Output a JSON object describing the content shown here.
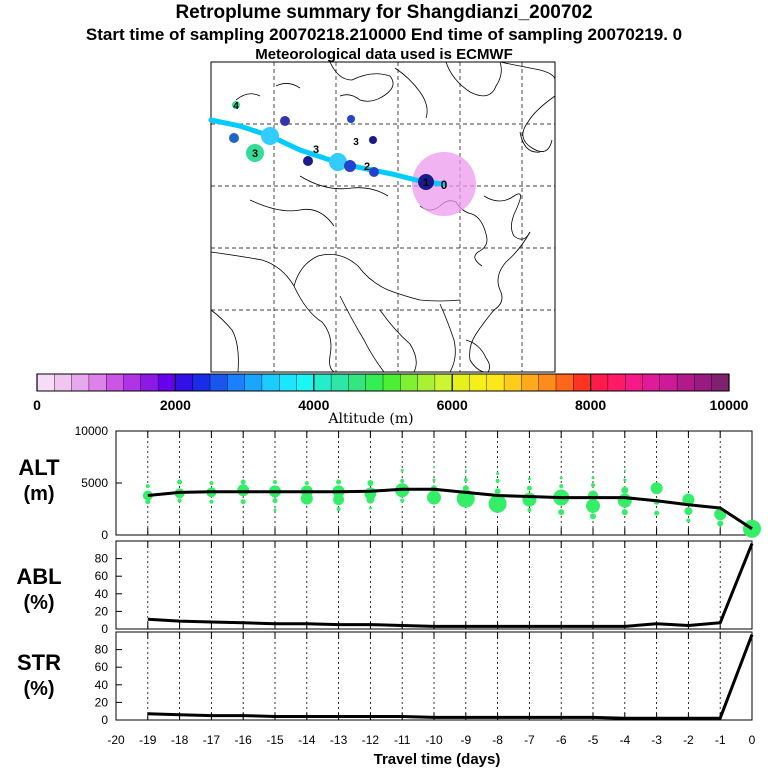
{
  "header": {
    "title": "Retroplume summary for Shangdianzi_200702",
    "subtitle": "Start time of sampling 20070218.210000     End time of sampling 20070219.     0",
    "met_line": "Meteorological data used is ECMWF"
  },
  "map": {
    "region": "Eastern Asia",
    "receptor_label": "0",
    "track_color": "#00ccff",
    "receptor_color": "#ee99ee",
    "clusters": [
      {
        "label": "4",
        "color": "#33dd99"
      },
      {
        "label": "4",
        "color": "#3333aa"
      },
      {
        "label": "3",
        "color": "#33dd99"
      },
      {
        "label": "3",
        "color": "#1f66cc"
      },
      {
        "label": "3",
        "color": "#1a1a8c"
      },
      {
        "label": "2",
        "color": "#2244cc"
      },
      {
        "label": "2",
        "color": "#1a1a8c"
      },
      {
        "label": "1",
        "color": "#1a1a8c"
      }
    ]
  },
  "colorbar": {
    "min": 0,
    "max": 10000,
    "ticks": [
      "0",
      "2000",
      "4000",
      "6000",
      "8000",
      "10000"
    ],
    "label": "Altitude (m)",
    "colors": [
      "#f7dcf7",
      "#f0c6f0",
      "#e8a8ee",
      "#dc82ea",
      "#cc55e6",
      "#b133e6",
      "#8c1ae6",
      "#6600ee",
      "#3311e6",
      "#1a2de6",
      "#1a55f0",
      "#1a80ff",
      "#1aa6ff",
      "#1accff",
      "#1ae6ff",
      "#1af5f5",
      "#22eecc",
      "#2ee6a6",
      "#33e680",
      "#33ee55",
      "#4cf033",
      "#80f033",
      "#aaf033",
      "#ccf533",
      "#e6f01a",
      "#f5f01a",
      "#ffe61a",
      "#ffcc1a",
      "#ffaa1a",
      "#ff8c1a",
      "#ff661a",
      "#ff3322",
      "#ff1a4c",
      "#ff1a66",
      "#f51a88",
      "#e01a99",
      "#cc1a99",
      "#b21a8c",
      "#991a80",
      "#802070"
    ]
  },
  "chart_data": [
    {
      "type": "line",
      "panel": "ALT",
      "title": "ALT",
      "ylabel": "ALT (m)",
      "ylabel_top": "ALT",
      "ylabel_bottom": "(m)",
      "xlabel": "Travel time (days)",
      "ylim": [
        0,
        10000
      ],
      "yticks": [
        0,
        5000,
        10000
      ],
      "x": [
        -19,
        -18,
        -17,
        -16,
        -15,
        -14,
        -13,
        -12,
        -11,
        -10,
        -9,
        -8,
        -7,
        -6,
        -5,
        -4,
        -3,
        -2,
        -1,
        0
      ],
      "values": [
        3800,
        4100,
        4150,
        4150,
        4150,
        4150,
        4150,
        4200,
        4400,
        4400,
        4100,
        3800,
        3700,
        3600,
        3600,
        3600,
        3300,
        2900,
        2600,
        600
      ],
      "cluster_points": {
        "color": "#33ee66",
        "points": [
          {
            "x": -19,
            "y": 3800,
            "s": 5
          },
          {
            "x": -19,
            "y": 4700,
            "s": 2
          },
          {
            "x": -19,
            "y": 3200,
            "s": 2.5
          },
          {
            "x": -18,
            "y": 4000,
            "s": 5
          },
          {
            "x": -18,
            "y": 5100,
            "s": 2.5
          },
          {
            "x": -18,
            "y": 3300,
            "s": 2
          },
          {
            "x": -17,
            "y": 4100,
            "s": 5
          },
          {
            "x": -17,
            "y": 5000,
            "s": 2
          },
          {
            "x": -17,
            "y": 3200,
            "s": 2
          },
          {
            "x": -16,
            "y": 4300,
            "s": 6
          },
          {
            "x": -16,
            "y": 5100,
            "s": 2.5
          },
          {
            "x": -16,
            "y": 3200,
            "s": 2.5
          },
          {
            "x": -15,
            "y": 4200,
            "s": 6
          },
          {
            "x": -15,
            "y": 5100,
            "s": 2
          },
          {
            "x": -15,
            "y": 3300,
            "s": 2.5
          },
          {
            "x": -15,
            "y": 2400,
            "s": 1.5
          },
          {
            "x": -14,
            "y": 4200,
            "s": 6
          },
          {
            "x": -14,
            "y": 3500,
            "s": 6
          },
          {
            "x": -14,
            "y": 5000,
            "s": 2
          },
          {
            "x": -13,
            "y": 4200,
            "s": 6
          },
          {
            "x": -13,
            "y": 3400,
            "s": 5.5
          },
          {
            "x": -13,
            "y": 5100,
            "s": 2.5
          },
          {
            "x": -13,
            "y": 2500,
            "s": 2
          },
          {
            "x": -12,
            "y": 4000,
            "s": 6
          },
          {
            "x": -12,
            "y": 3400,
            "s": 4
          },
          {
            "x": -12,
            "y": 5000,
            "s": 3
          },
          {
            "x": -12,
            "y": 2600,
            "s": 1.5
          },
          {
            "x": -11,
            "y": 4300,
            "s": 7
          },
          {
            "x": -11,
            "y": 5200,
            "s": 2
          },
          {
            "x": -11,
            "y": 6200,
            "s": 1.5
          },
          {
            "x": -11,
            "y": 3300,
            "s": 2
          },
          {
            "x": -10,
            "y": 3600,
            "s": 7
          },
          {
            "x": -10,
            "y": 4500,
            "s": 3
          },
          {
            "x": -10,
            "y": 5300,
            "s": 1.5
          },
          {
            "x": -10,
            "y": 6500,
            "s": 1
          },
          {
            "x": -9,
            "y": 3500,
            "s": 9
          },
          {
            "x": -9,
            "y": 4500,
            "s": 3
          },
          {
            "x": -9,
            "y": 5300,
            "s": 2
          },
          {
            "x": -9,
            "y": 6200,
            "s": 1
          },
          {
            "x": -8,
            "y": 3000,
            "s": 9
          },
          {
            "x": -8,
            "y": 4200,
            "s": 3
          },
          {
            "x": -8,
            "y": 5200,
            "s": 2
          },
          {
            "x": -8,
            "y": 5900,
            "s": 1.5
          },
          {
            "x": -7,
            "y": 3400,
            "s": 7
          },
          {
            "x": -7,
            "y": 4500,
            "s": 2.5
          },
          {
            "x": -7,
            "y": 5400,
            "s": 1.5
          },
          {
            "x": -7,
            "y": 2400,
            "s": 2
          },
          {
            "x": -6,
            "y": 3600,
            "s": 8
          },
          {
            "x": -6,
            "y": 2200,
            "s": 3
          },
          {
            "x": -6,
            "y": 4700,
            "s": 2
          },
          {
            "x": -6,
            "y": 5500,
            "s": 1.5
          },
          {
            "x": -5,
            "y": 2800,
            "s": 7
          },
          {
            "x": -5,
            "y": 3800,
            "s": 5
          },
          {
            "x": -5,
            "y": 1800,
            "s": 3
          },
          {
            "x": -5,
            "y": 4800,
            "s": 2
          },
          {
            "x": -5,
            "y": 5500,
            "s": 1.5
          },
          {
            "x": -4,
            "y": 3300,
            "s": 7
          },
          {
            "x": -4,
            "y": 4300,
            "s": 3.5
          },
          {
            "x": -4,
            "y": 2200,
            "s": 3
          },
          {
            "x": -4,
            "y": 5300,
            "s": 1.5
          },
          {
            "x": -4,
            "y": 6200,
            "s": 1
          },
          {
            "x": -3,
            "y": 4500,
            "s": 6
          },
          {
            "x": -3,
            "y": 3200,
            "s": 3
          },
          {
            "x": -3,
            "y": 2100,
            "s": 2.5
          },
          {
            "x": -2,
            "y": 3400,
            "s": 6
          },
          {
            "x": -2,
            "y": 2300,
            "s": 4
          },
          {
            "x": -2,
            "y": 1400,
            "s": 2
          },
          {
            "x": -1,
            "y": 2000,
            "s": 6
          },
          {
            "x": -1,
            "y": 1100,
            "s": 3
          },
          {
            "x": 0,
            "y": 600,
            "s": 9
          }
        ]
      }
    },
    {
      "type": "line",
      "panel": "ABL",
      "title": "ABL",
      "ylabel": "ABL (%)",
      "ylabel_top": "ABL",
      "ylabel_bottom": "(%)",
      "ylim": [
        0,
        100
      ],
      "yticks": [
        0,
        20,
        40,
        60,
        80
      ],
      "x": [
        -19,
        -18,
        -17,
        -16,
        -15,
        -14,
        -13,
        -12,
        -11,
        -10,
        -9,
        -8,
        -7,
        -6,
        -5,
        -4,
        -3,
        -2,
        -1,
        0
      ],
      "values": [
        11,
        9,
        8,
        7,
        6,
        6,
        5,
        5,
        4,
        3,
        3,
        3,
        3,
        3,
        3,
        3,
        6,
        4,
        7,
        97
      ]
    },
    {
      "type": "line",
      "panel": "STR",
      "title": "STR",
      "ylabel": "STR (%)",
      "ylabel_top": "STR",
      "ylabel_bottom": "(%)",
      "xlabel": "Travel time (days)",
      "ylim": [
        0,
        100
      ],
      "yticks": [
        0,
        20,
        40,
        60,
        80
      ],
      "xticks": [
        -20,
        -19,
        -18,
        -17,
        -16,
        -15,
        -14,
        -13,
        -12,
        -11,
        -10,
        -9,
        -8,
        -7,
        -6,
        -5,
        -4,
        -3,
        -2,
        -1,
        0
      ],
      "x": [
        -19,
        -18,
        -17,
        -16,
        -15,
        -14,
        -13,
        -12,
        -11,
        -10,
        -9,
        -8,
        -7,
        -6,
        -5,
        -4,
        -3,
        -2,
        -1,
        0
      ],
      "values": [
        7,
        6,
        5,
        5,
        4,
        4,
        4,
        4,
        4,
        3,
        3,
        3,
        3,
        3,
        3,
        2,
        2,
        2,
        2,
        97
      ]
    }
  ]
}
